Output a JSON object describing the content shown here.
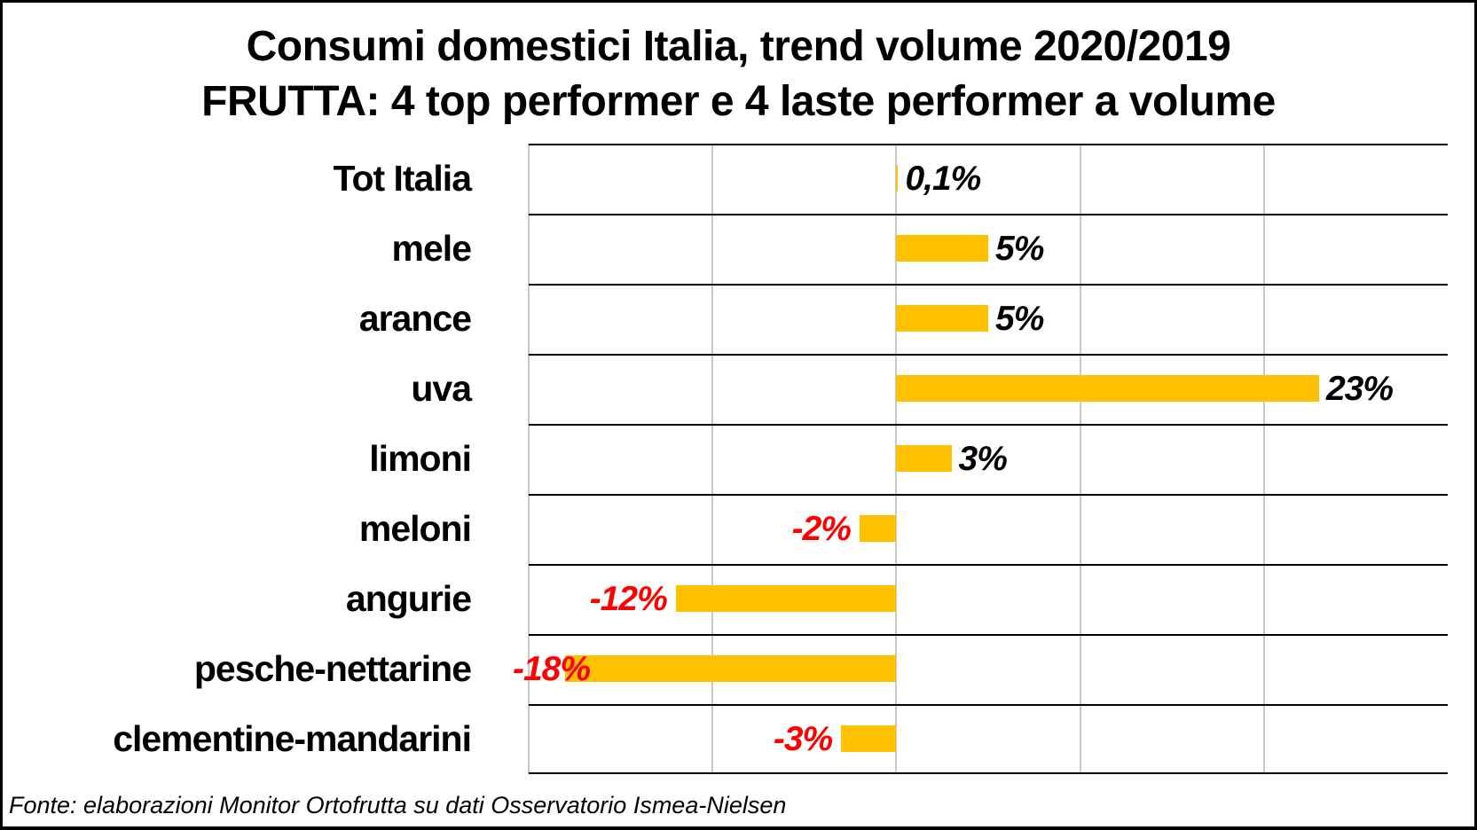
{
  "title": {
    "line1": "Consumi domestici Italia, trend volume 2020/2019",
    "line2": "FRUTTA: 4 top performer e 4 laste performer a volume"
  },
  "source": {
    "text": "Fonte: elaborazioni Monitor Ortofrutta su dati Osservatorio Ismea-Nielsen"
  },
  "chart_data": {
    "type": "bar",
    "orientation": "horizontal",
    "title": "Consumi domestici Italia, trend volume 2020/2019",
    "subtitle": "FRUTTA: 4 top performer e 4 laste performer a volume",
    "categories": [
      "Tot Italia",
      "mele",
      "arance",
      "uva",
      "limoni",
      "meloni",
      "angurie",
      "pesche-nettarine",
      "clementine-mandarini"
    ],
    "values": [
      0.1,
      5,
      5,
      23,
      3,
      -2,
      -12,
      -18,
      -3
    ],
    "data_labels": [
      "0,1%",
      "5%",
      "5%",
      "23%",
      "3%",
      "-2%",
      "-12%",
      "-18%",
      "-3%"
    ],
    "xlim": [
      -20,
      30
    ],
    "gridlines": [
      -20,
      -10,
      0,
      10,
      20
    ],
    "grid": true,
    "legend": false,
    "xlabel": "",
    "ylabel": "",
    "bar_color": "#FFC000",
    "positive_label_color": "#000000",
    "negative_label_color": "#FF0000"
  }
}
